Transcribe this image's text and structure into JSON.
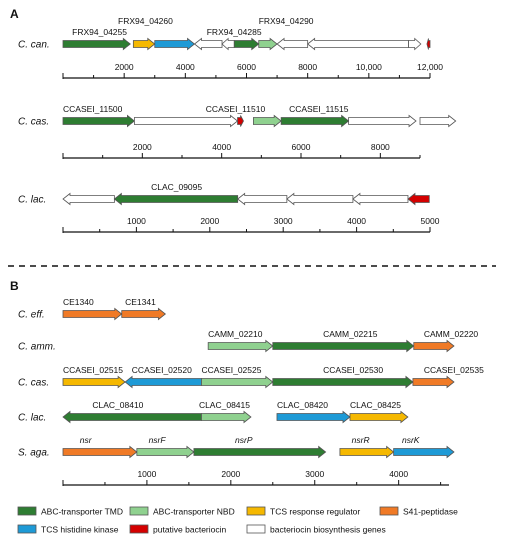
{
  "colors": {
    "tmd": "#2e7d32",
    "nbd": "#8fd18f",
    "rr": "#f5b800",
    "s41": "#f07a26",
    "hk": "#1e9ad6",
    "bac": "#d40000",
    "bio": "#ffffff",
    "stroke": "#555555"
  },
  "panelA": {
    "label": "A",
    "tracks": [
      {
        "organism": "C. can.",
        "scale": {
          "max": 12000,
          "ticks": [
            2000,
            4000,
            6000,
            8000,
            10000,
            12000
          ],
          "tick_labels": [
            "2000",
            "4000",
            "6000",
            "8000",
            "10,000",
            "12,000"
          ]
        },
        "genes": [
          {
            "start": 0,
            "end": 2200,
            "dir": 1,
            "type": "tmd"
          },
          {
            "start": 2300,
            "end": 3000,
            "dir": 1,
            "type": "rr"
          },
          {
            "start": 3000,
            "end": 4300,
            "dir": 1,
            "type": "hk"
          },
          {
            "start": 4300,
            "end": 5200,
            "dir": -1,
            "type": "bio"
          },
          {
            "start": 5200,
            "end": 5600,
            "dir": -1,
            "type": "bio"
          },
          {
            "start": 5600,
            "end": 6400,
            "dir": 1,
            "type": "tmd"
          },
          {
            "start": 6400,
            "end": 7000,
            "dir": 1,
            "type": "nbd"
          },
          {
            "start": 7000,
            "end": 8000,
            "dir": -1,
            "type": "bio"
          },
          {
            "start": 8000,
            "end": 11300,
            "dir": -1,
            "type": "bio"
          },
          {
            "start": 11300,
            "end": 11700,
            "dir": 1,
            "type": "bio"
          },
          {
            "start": 11900,
            "end": 12000,
            "dir": -1,
            "type": "bac"
          }
        ],
        "labels": [
          {
            "text": "FRX94_04260",
            "pos": 1800,
            "row": 1
          },
          {
            "text": "FRX94_04255",
            "pos": 300,
            "row": 2
          },
          {
            "text": "FRX94_04290",
            "pos": 6400,
            "row": 1
          },
          {
            "text": "FRX94_04285",
            "pos": 4700,
            "row": 2
          }
        ]
      },
      {
        "organism": "C. cas.",
        "scale": {
          "max": 9000,
          "ticks": [
            2000,
            4000,
            6000,
            8000
          ],
          "tick_labels": [
            "2000",
            "4000",
            "6000",
            "8000"
          ]
        },
        "genes": [
          {
            "start": 0,
            "end": 1800,
            "dir": 1,
            "type": "tmd"
          },
          {
            "start": 1800,
            "end": 4400,
            "dir": 1,
            "type": "bio"
          },
          {
            "start": 4400,
            "end": 4550,
            "dir": 1,
            "type": "bac"
          },
          {
            "start": 4800,
            "end": 5500,
            "dir": 1,
            "type": "nbd"
          },
          {
            "start": 5500,
            "end": 7200,
            "dir": 1,
            "type": "tmd"
          },
          {
            "start": 7200,
            "end": 8900,
            "dir": 1,
            "type": "bio"
          },
          {
            "start": 9000,
            "end": 9900,
            "dir": 1,
            "type": "bio"
          }
        ],
        "labels": [
          {
            "text": "CCASEI_11500",
            "pos": 0,
            "row": 1
          },
          {
            "text": "CCASEI_11510",
            "pos": 3600,
            "row": 1
          },
          {
            "text": "CCASEI_11515",
            "pos": 5700,
            "row": 1
          }
        ]
      },
      {
        "organism": "C. lac.",
        "scale": {
          "max": 5000,
          "ticks": [
            1000,
            2000,
            3000,
            4000,
            5000
          ],
          "tick_labels": [
            "1000",
            "2000",
            "3000",
            "4000",
            "5000"
          ]
        },
        "genes": [
          {
            "start": 0,
            "end": 700,
            "dir": -1,
            "type": "bio"
          },
          {
            "start": 700,
            "end": 2380,
            "dir": -1,
            "type": "tmd"
          },
          {
            "start": 2380,
            "end": 3050,
            "dir": -1,
            "type": "bio"
          },
          {
            "start": 3050,
            "end": 3950,
            "dir": -1,
            "type": "bio"
          },
          {
            "start": 3950,
            "end": 4700,
            "dir": -1,
            "type": "bio"
          },
          {
            "start": 4700,
            "end": 4990,
            "dir": -1,
            "type": "bac"
          }
        ],
        "labels": [
          {
            "text": "CLAC_09095",
            "pos": 1200,
            "row": 1
          }
        ]
      }
    ]
  },
  "panelB": {
    "label": "B",
    "scale": {
      "max": 4600,
      "ticks": [
        1000,
        2000,
        3000,
        4000
      ],
      "tick_labels": [
        "1000",
        "2000",
        "3000",
        "4000"
      ]
    },
    "tracks": [
      {
        "organism": "C. eff.",
        "genes": [
          {
            "start": 0,
            "end": 700,
            "dir": 1,
            "type": "s41"
          },
          {
            "start": 700,
            "end": 1220,
            "dir": 1,
            "type": "s41"
          }
        ],
        "labels": [
          {
            "text": "CE1340",
            "pos": 0
          },
          {
            "text": "CE1341",
            "pos": 740
          }
        ]
      },
      {
        "organism": "C. amm.",
        "genes": [
          {
            "start": 1730,
            "end": 2500,
            "dir": 1,
            "type": "nbd"
          },
          {
            "start": 2500,
            "end": 4180,
            "dir": 1,
            "type": "tmd"
          },
          {
            "start": 4180,
            "end": 5200,
            "dir": 1,
            "type": "s41"
          }
        ],
        "labels": [
          {
            "text": "CAMM_02210",
            "pos": 1730
          },
          {
            "text": "CAMM_02215",
            "pos": 3100
          },
          {
            "text": "CAMM_02220",
            "pos": 4300
          }
        ]
      },
      {
        "organism": "C. cas.",
        "genes": [
          {
            "start": 0,
            "end": 740,
            "dir": 1,
            "type": "rr"
          },
          {
            "start": 740,
            "end": 1650,
            "dir": -1,
            "type": "hk"
          },
          {
            "start": 1650,
            "end": 2500,
            "dir": 1,
            "type": "nbd"
          },
          {
            "start": 2500,
            "end": 4170,
            "dir": 1,
            "type": "tmd"
          },
          {
            "start": 4170,
            "end": 5200,
            "dir": 1,
            "type": "s41"
          }
        ],
        "labels": [
          {
            "text": "CCASEI_02515",
            "pos": 0
          },
          {
            "text": "CCASEI_02520",
            "pos": 820
          },
          {
            "text": "CCASEI_02525",
            "pos": 1650
          },
          {
            "text": "CCASEI_02530",
            "pos": 3100
          },
          {
            "text": "CCASEI_02535",
            "pos": 4300
          }
        ]
      },
      {
        "organism": "C. lac.",
        "genes": [
          {
            "start": 0,
            "end": 1650,
            "dir": -1,
            "type": "tmd"
          },
          {
            "start": 1650,
            "end": 2240,
            "dir": 1,
            "type": "nbd"
          },
          {
            "start": 2550,
            "end": 3420,
            "dir": 1,
            "type": "hk"
          },
          {
            "start": 3420,
            "end": 4110,
            "dir": 1,
            "type": "rr"
          }
        ],
        "labels": [
          {
            "text": "CLAC_08410",
            "pos": 350
          },
          {
            "text": "CLAC_08415",
            "pos": 1620
          },
          {
            "text": "CLAC_08420",
            "pos": 2550
          },
          {
            "text": "CLAC_08425",
            "pos": 3420
          }
        ]
      },
      {
        "organism": "S. aga.",
        "genes": [
          {
            "start": 0,
            "end": 880,
            "dir": 1,
            "type": "s41"
          },
          {
            "start": 880,
            "end": 1560,
            "dir": 1,
            "type": "nbd"
          },
          {
            "start": 1560,
            "end": 3130,
            "dir": 1,
            "type": "tmd"
          },
          {
            "start": 3300,
            "end": 3940,
            "dir": 1,
            "type": "rr"
          },
          {
            "start": 3940,
            "end": 4850,
            "dir": 1,
            "type": "hk"
          }
        ],
        "labels": [
          {
            "text": "nsr",
            "pos": 200,
            "italic": true
          },
          {
            "text": "nsrF",
            "pos": 1020,
            "italic": true
          },
          {
            "text": "nsrP",
            "pos": 2050,
            "italic": true
          },
          {
            "text": "nsrR",
            "pos": 3440,
            "italic": true
          },
          {
            "text": "nsrK",
            "pos": 4040,
            "italic": true
          }
        ]
      }
    ]
  },
  "legend": [
    {
      "type": "tmd",
      "label": "ABC-transporter TMD"
    },
    {
      "type": "nbd",
      "label": "ABC-transporter NBD"
    },
    {
      "type": "rr",
      "label": "TCS response regulator"
    },
    {
      "type": "s41",
      "label": "S41-peptidase"
    },
    {
      "type": "hk",
      "label": "TCS histidine kinase"
    },
    {
      "type": "bac",
      "label": "putative bacteriocin"
    },
    {
      "type": "bio",
      "label": "bacteriocin biosynthesis genes"
    }
  ]
}
